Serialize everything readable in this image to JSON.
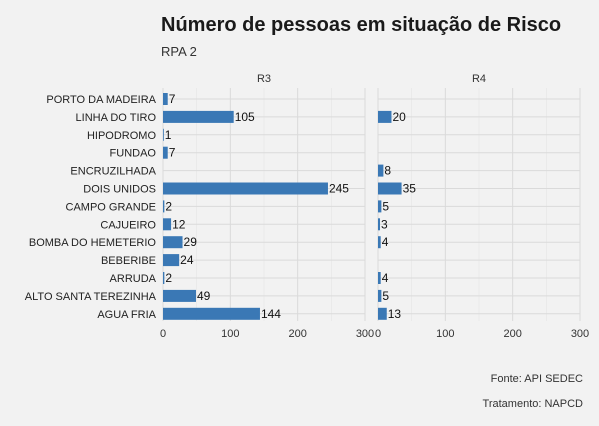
{
  "chart_data": {
    "type": "bar",
    "orientation": "horizontal",
    "title": "Número de pessoas em situação de Risco",
    "subtitle": "RPA 2",
    "categories": [
      "PORTO DA MADEIRA",
      "LINHA DO TIRO",
      "HIPODROMO",
      "FUNDAO",
      "ENCRUZILHADA",
      "DOIS UNIDOS",
      "CAMPO GRANDE",
      "CAJUEIRO",
      "BOMBA DO HEMETERIO",
      "BEBERIBE",
      "ARRUDA",
      "ALTO SANTA TEREZINHA",
      "AGUA FRIA"
    ],
    "facets": [
      {
        "name": "R3",
        "values": [
          7,
          105,
          1,
          7,
          null,
          245,
          2,
          12,
          29,
          24,
          2,
          49,
          144
        ]
      },
      {
        "name": "R4",
        "values": [
          null,
          20,
          null,
          null,
          8,
          35,
          5,
          3,
          4,
          null,
          4,
          5,
          13
        ]
      }
    ],
    "xlim": [
      0,
      300
    ],
    "xticks": [
      0,
      100,
      200,
      300
    ],
    "bar_color": "#3a78b5",
    "grid": true
  },
  "captions": {
    "source": "Fonte: API SEDEC",
    "treatment": "Tratamento: NAPCD"
  }
}
